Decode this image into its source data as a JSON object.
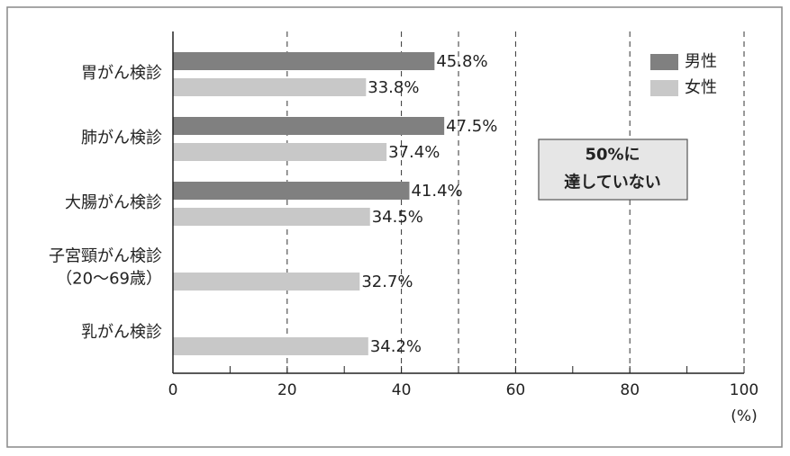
{
  "chart_data": {
    "type": "barh",
    "categories": [
      "胃がん検診",
      "肺がん検診",
      "大腸がん検診",
      "子宮頸がん検診\n（20〜69歳）",
      "乳がん検診"
    ],
    "series": [
      {
        "name": "男性",
        "color": "#808080",
        "values": [
          45.8,
          47.5,
          41.4,
          null,
          null
        ],
        "value_labels": [
          "45.8%",
          "47.5%",
          "41.4%",
          null,
          null
        ]
      },
      {
        "name": "女性",
        "color": "#c8c8c8",
        "values": [
          33.8,
          37.4,
          34.5,
          32.7,
          34.2
        ],
        "value_labels": [
          "33.8%",
          "37.4%",
          "34.5%",
          "32.7%",
          "34.2%"
        ]
      }
    ],
    "xlim": [
      0,
      100
    ],
    "xticks": [
      0,
      20,
      40,
      60,
      80,
      100
    ],
    "minor_xticks": [
      10,
      30,
      50,
      70,
      90
    ],
    "reference_line": 50,
    "x_unit_label": "(%)",
    "annotation": "50%に\n達していない",
    "grid": true,
    "legend": "upper right"
  }
}
